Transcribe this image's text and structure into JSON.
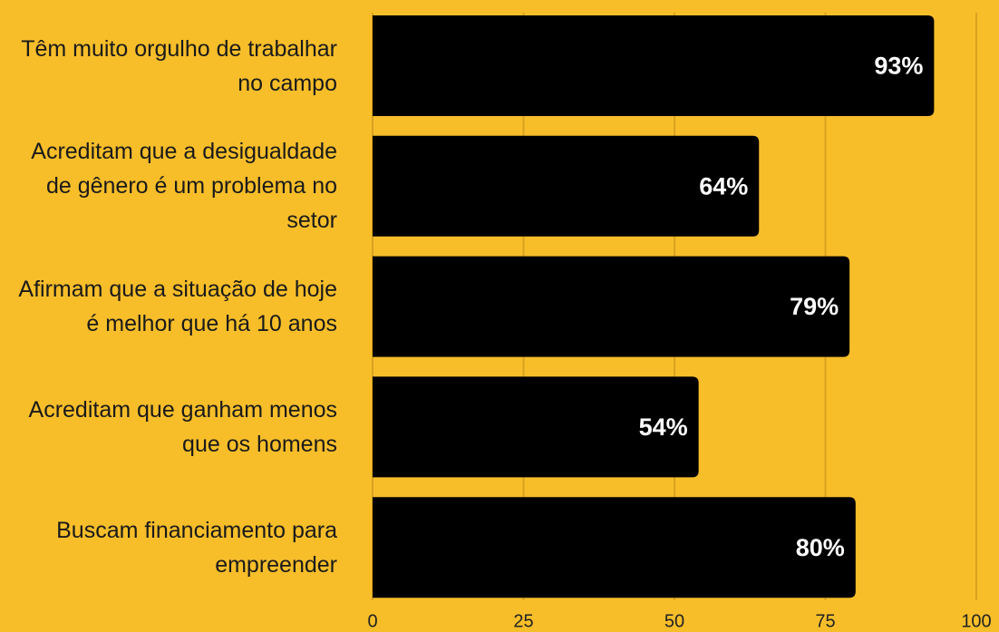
{
  "chart_data": {
    "type": "bar",
    "orientation": "horizontal",
    "categories": [
      "Têm muito orgulho de trabalhar no campo",
      "Acreditam que a desigualdade de gênero é um problema no setor",
      "Afirmam que a situação de hoje é melhor que há 10 anos",
      "Acreditam que ganham menos que os homens",
      "Buscam financiamento para empreender"
    ],
    "values": [
      93,
      64,
      79,
      54,
      80
    ],
    "value_labels": [
      "93%",
      "64%",
      "79%",
      "54%",
      "80%"
    ],
    "color": "#000000",
    "xlim": [
      0,
      100
    ],
    "xticks": [
      0,
      25,
      50,
      75,
      100
    ],
    "grid": true
  }
}
